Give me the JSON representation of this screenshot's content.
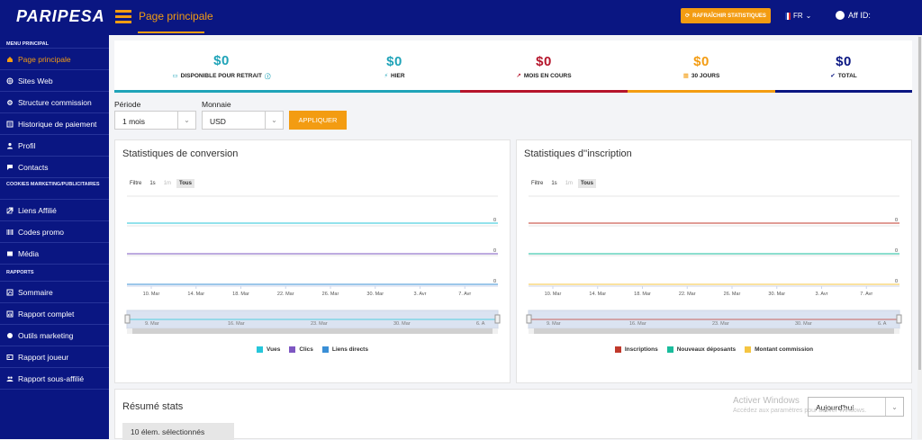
{
  "app": {
    "logo": "PARIPESA",
    "page_title": "Page principale",
    "refresh_label": "RAFRAÎCHIR STATISTIQUES",
    "lang": "FR",
    "aff_label": "Aff ID:"
  },
  "sidebar": {
    "sections": [
      "MENU PRINCIPAL",
      "COOKIES MARKETING/PUBLICITAIRES",
      "RAPPORTS"
    ],
    "main_items": [
      {
        "label": "Page principale",
        "icon": "home-icon"
      },
      {
        "label": "Sites Web",
        "icon": "globe-icon"
      },
      {
        "label": "Structure commission",
        "icon": "gear-icon"
      },
      {
        "label": "Historique de paiement",
        "icon": "history-icon"
      },
      {
        "label": "Profil",
        "icon": "user-icon"
      },
      {
        "label": "Contacts",
        "icon": "chat-icon"
      }
    ],
    "marketing_items": [
      {
        "label": "Liens Affilié",
        "icon": "link-icon"
      },
      {
        "label": "Codes promo",
        "icon": "barcode-icon"
      },
      {
        "label": "Média",
        "icon": "media-icon"
      }
    ],
    "report_items": [
      {
        "label": "Sommaire",
        "icon": "summary-icon"
      },
      {
        "label": "Rapport complet",
        "icon": "chart-icon"
      },
      {
        "label": "Outils marketing",
        "icon": "palette-icon"
      },
      {
        "label": "Rapport joueur",
        "icon": "id-card-icon"
      },
      {
        "label": "Rapport sous-affilié",
        "icon": "users-icon"
      }
    ]
  },
  "cards": [
    {
      "value": "$0",
      "label": "DISPONIBLE POUR RETRAIT",
      "color": "#1fa3b8",
      "icon": "money-icon"
    },
    {
      "value": "$0",
      "label": "HIER",
      "color": "#1fa3b8",
      "icon": "bolt-icon"
    },
    {
      "value": "$0",
      "label": "MOIS EN COURS",
      "color": "#b5152b",
      "icon": "trend-icon"
    },
    {
      "value": "$0",
      "label": "30 JOURS",
      "color": "#f39c12",
      "icon": "calendar-icon"
    },
    {
      "value": "$0",
      "label": "TOTAL",
      "color": "#0a1682",
      "icon": "check-icon"
    }
  ],
  "filters": {
    "period_label": "Période",
    "period_value": "1 mois",
    "currency_label": "Monnaie",
    "currency_value": "USD",
    "apply_label": "APPLIQUER"
  },
  "charts": [
    {
      "title": "Statistiques de conversion",
      "filter_label": "Filtre",
      "ranges": [
        "1s",
        "1m",
        "Tous"
      ],
      "x_ticks": [
        "10. Mar",
        "14. Mar",
        "18. Mar",
        "22. Mar",
        "26. Mar",
        "30. Mar",
        "3. Avr",
        "7. Avr"
      ],
      "nav_ticks": [
        "9. Mar",
        "16. Mar",
        "23. Mar",
        "30. Mar",
        "6. A"
      ],
      "series": [
        {
          "name": "Vues",
          "color": "#26c6da",
          "value": 0
        },
        {
          "name": "Clics",
          "color": "#7e57c2",
          "value": 0
        },
        {
          "name": "Liens directs",
          "color": "#3a8fd6",
          "value": 0
        }
      ]
    },
    {
      "title": "Statistiques d''inscription",
      "filter_label": "Filtre",
      "ranges": [
        "1s",
        "1m",
        "Tous"
      ],
      "x_ticks": [
        "10. Mar",
        "14. Mar",
        "18. Mar",
        "22. Mar",
        "26. Mar",
        "30. Mar",
        "3. Avr",
        "7. Avr"
      ],
      "nav_ticks": [
        "9. Mar",
        "16. Mar",
        "23. Mar",
        "30. Mar",
        "6. A"
      ],
      "series": [
        {
          "name": "Inscriptions",
          "color": "#c0392b",
          "value": 0
        },
        {
          "name": "Nouveaux déposants",
          "color": "#1abc9c",
          "value": 0
        },
        {
          "name": "Montant commission",
          "color": "#f5c542",
          "value": 0
        }
      ]
    }
  ],
  "summary": {
    "title": "Résumé stats",
    "select_label": "10 élem. sélectionnés",
    "period_select": "Aujourd'hui"
  },
  "watermark": {
    "line1": "Activer Windows",
    "line2": "Accédez aux paramètres pour activer Windows."
  }
}
